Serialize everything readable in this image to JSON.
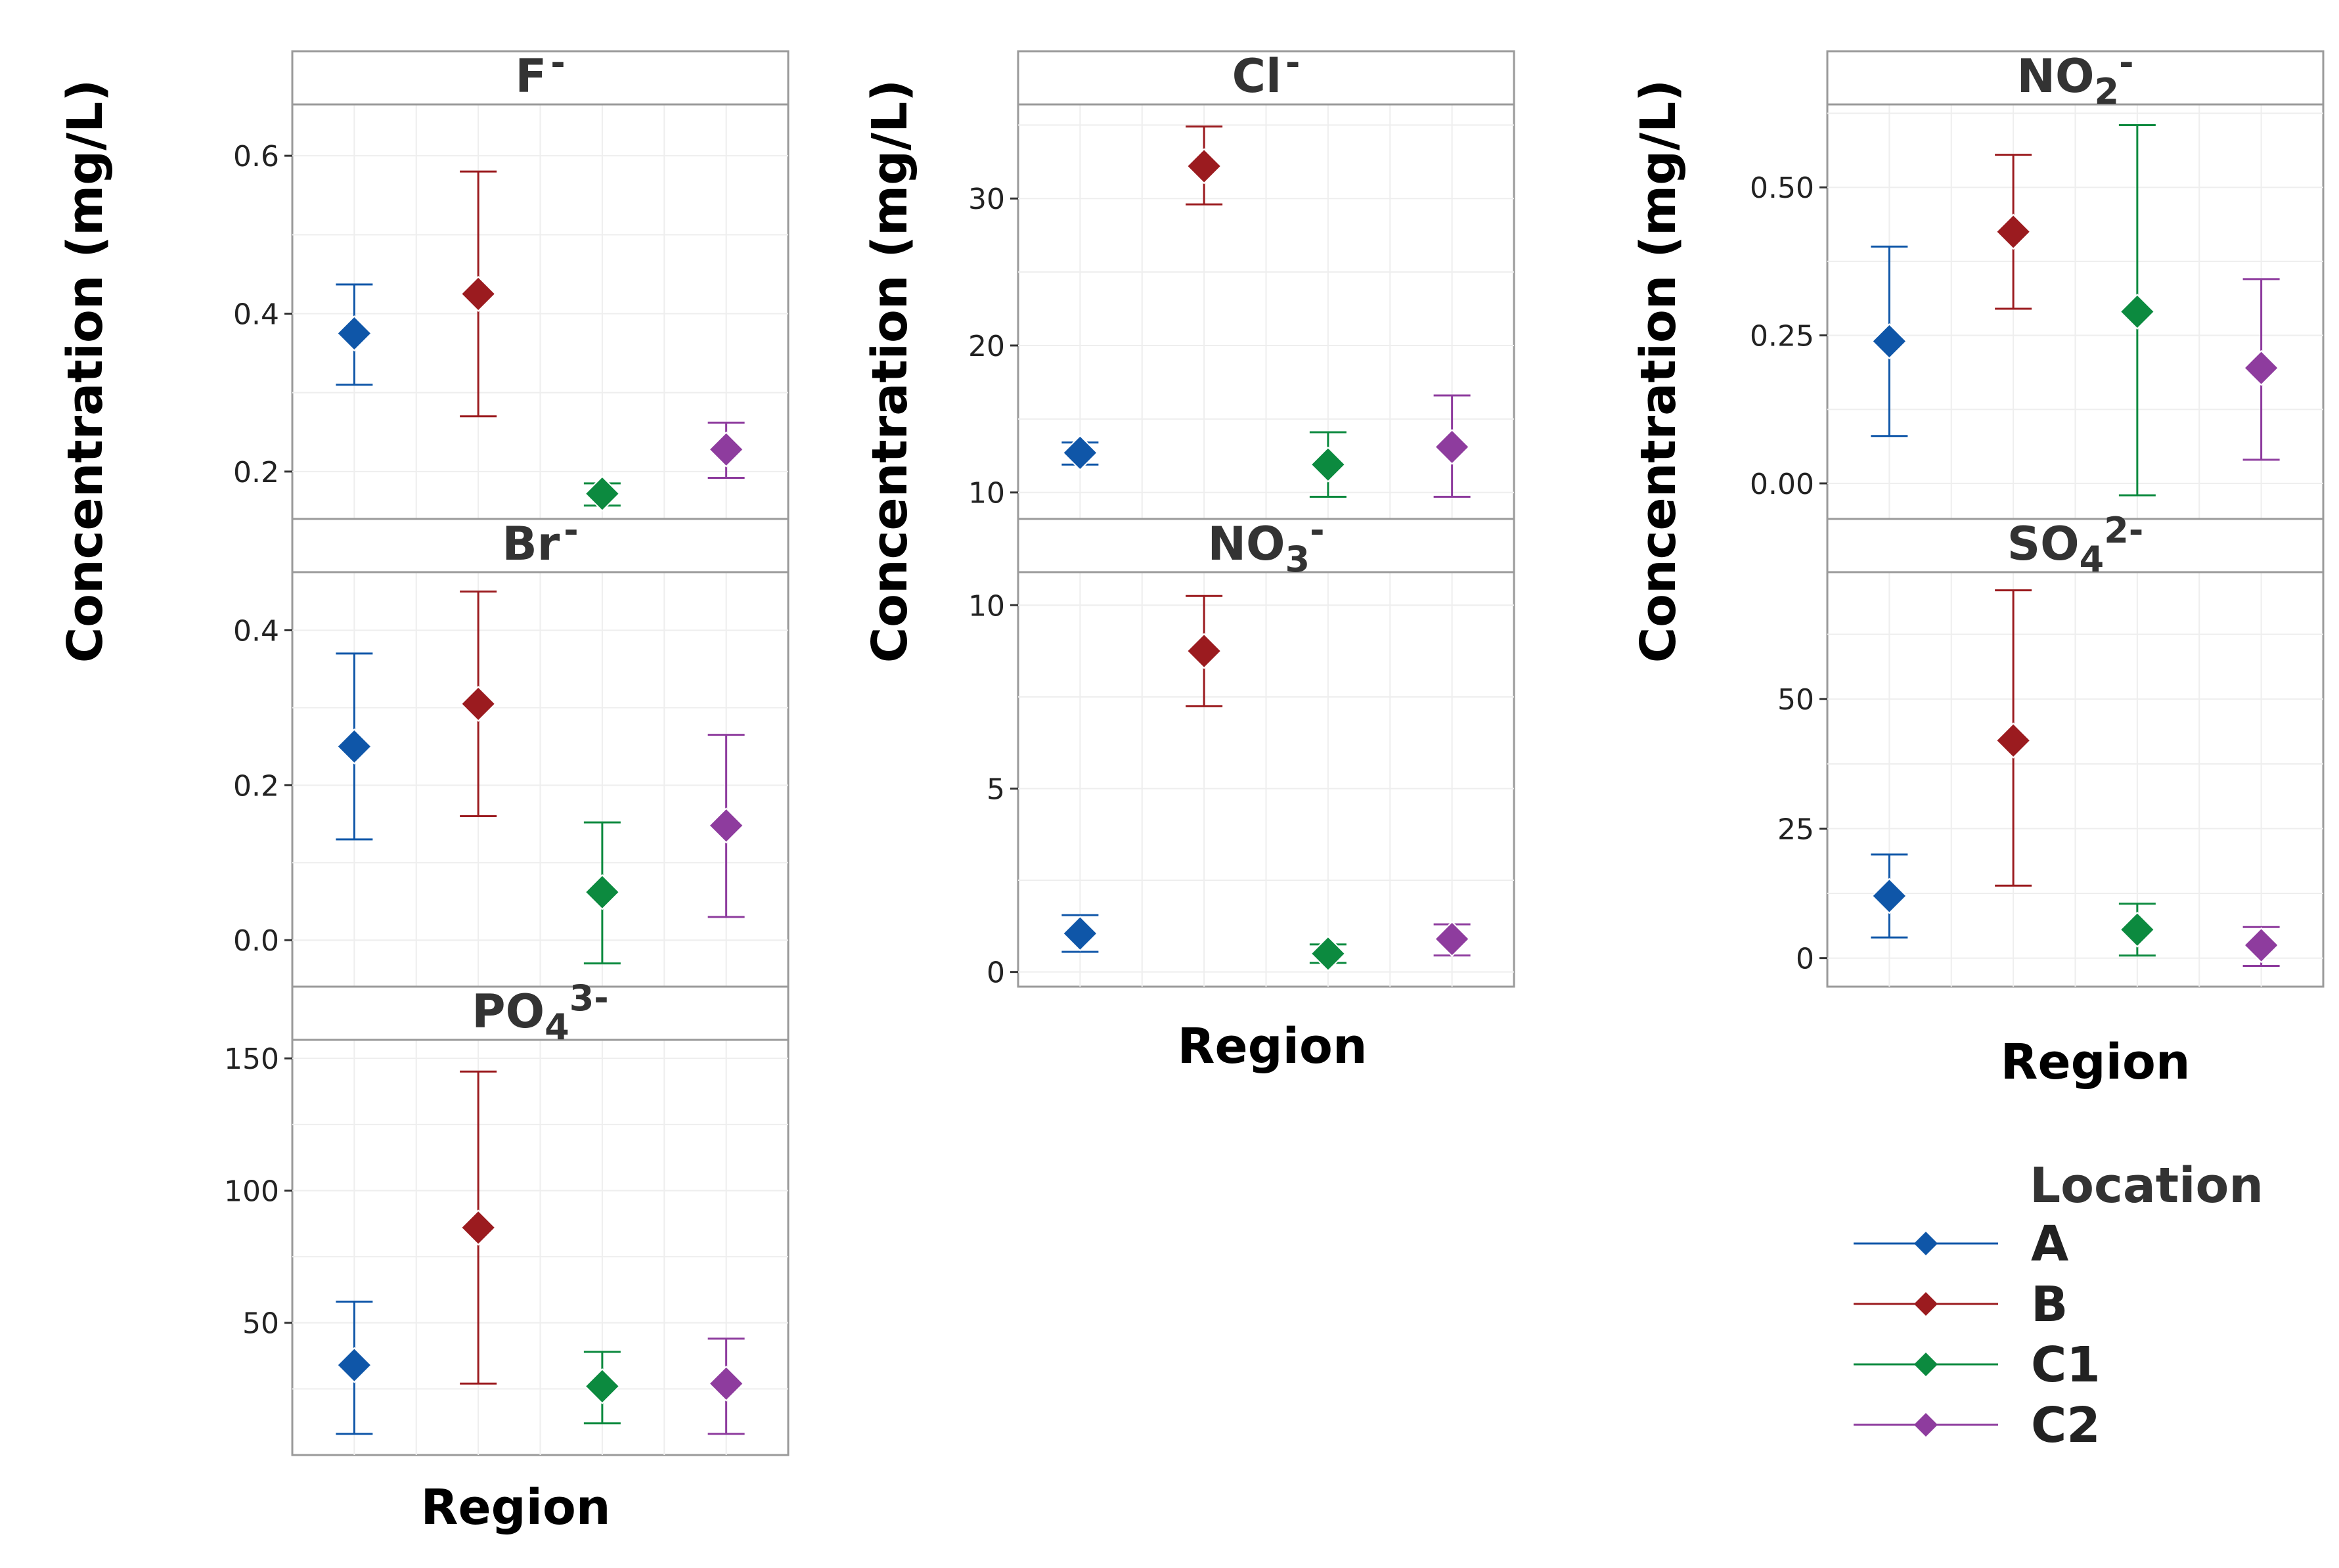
{
  "chart_data": {
    "type": "scatter",
    "subtype": "point-with-error-bars",
    "facet_layout": "three columns of stacked facet panels",
    "x_axis_title": "Region",
    "y_axis_title": "Concentration (mg/L)",
    "categories": [
      "A",
      "B",
      "C1",
      "C2"
    ],
    "colors": {
      "A": "#0f56a8",
      "B": "#9b1b1f",
      "C1": "#0c8a3f",
      "C2": "#8e3c9e"
    },
    "legend": {
      "title": "Location",
      "position": "bottom-right",
      "entries": [
        "A",
        "B",
        "C1",
        "C2"
      ]
    },
    "grid": true,
    "panels": [
      {
        "id": "F",
        "ion": "F",
        "charge": "-",
        "sub": "",
        "ylim": [
          0.14,
          0.665
        ],
        "yticks": [
          0.2,
          0.4,
          0.6
        ],
        "ytick_labels": [
          "0.2",
          "0.4",
          "0.6"
        ],
        "points": [
          {
            "location": "A",
            "mean": 0.375,
            "low": 0.31,
            "high": 0.437
          },
          {
            "location": "B",
            "mean": 0.425,
            "low": 0.27,
            "high": 0.58
          },
          {
            "location": "C1",
            "mean": 0.172,
            "low": 0.157,
            "high": 0.185
          },
          {
            "location": "C2",
            "mean": 0.228,
            "low": 0.192,
            "high": 0.262
          }
        ]
      },
      {
        "id": "Br",
        "ion": "Br",
        "charge": "-",
        "sub": "",
        "ylim": [
          -0.06,
          0.475
        ],
        "yticks": [
          0.0,
          0.2,
          0.4
        ],
        "ytick_labels": [
          "0.0",
          "0.2",
          "0.4"
        ],
        "points": [
          {
            "location": "A",
            "mean": 0.25,
            "low": 0.13,
            "high": 0.37
          },
          {
            "location": "B",
            "mean": 0.305,
            "low": 0.16,
            "high": 0.45
          },
          {
            "location": "C1",
            "mean": 0.062,
            "low": -0.03,
            "high": 0.152
          },
          {
            "location": "C2",
            "mean": 0.148,
            "low": 0.03,
            "high": 0.265
          }
        ]
      },
      {
        "id": "PO4",
        "ion": "PO",
        "charge": "3-",
        "sub": "4",
        "ylim": [
          0,
          157
        ],
        "yticks": [
          50,
          100,
          150
        ],
        "ytick_labels": [
          "50",
          "100",
          "150"
        ],
        "points": [
          {
            "location": "A",
            "mean": 34,
            "low": 8,
            "high": 58
          },
          {
            "location": "B",
            "mean": 86,
            "low": 27,
            "high": 145
          },
          {
            "location": "C1",
            "mean": 26,
            "low": 12,
            "high": 39
          },
          {
            "location": "C2",
            "mean": 27,
            "low": 8,
            "high": 44
          }
        ]
      },
      {
        "id": "Cl",
        "ion": "Cl",
        "charge": "-",
        "sub": "",
        "ylim": [
          8.2,
          36.4
        ],
        "yticks": [
          10,
          20,
          30
        ],
        "ytick_labels": [
          "10",
          "20",
          "30"
        ],
        "points": [
          {
            "location": "A",
            "mean": 12.7,
            "low": 11.9,
            "high": 13.4
          },
          {
            "location": "B",
            "mean": 32.2,
            "low": 29.6,
            "high": 34.9
          },
          {
            "location": "C1",
            "mean": 11.9,
            "low": 9.7,
            "high": 14.1
          },
          {
            "location": "C2",
            "mean": 13.1,
            "low": 9.7,
            "high": 16.6
          }
        ]
      },
      {
        "id": "NO3",
        "ion": "NO",
        "charge": "-",
        "sub": "3",
        "ylim": [
          -0.4,
          10.9
        ],
        "yticks": [
          0,
          5,
          10
        ],
        "ytick_labels": [
          "0",
          "5",
          "10"
        ],
        "points": [
          {
            "location": "A",
            "mean": 1.05,
            "low": 0.55,
            "high": 1.55
          },
          {
            "location": "B",
            "mean": 8.75,
            "low": 7.25,
            "high": 10.25
          },
          {
            "location": "C1",
            "mean": 0.5,
            "low": 0.25,
            "high": 0.75
          },
          {
            "location": "C2",
            "mean": 0.9,
            "low": 0.45,
            "high": 1.3
          }
        ]
      },
      {
        "id": "NO2",
        "ion": "NO",
        "charge": "-",
        "sub": "2",
        "ylim": [
          -0.06,
          0.64
        ],
        "yticks": [
          0.0,
          0.25,
          0.5
        ],
        "ytick_labels": [
          "0.00",
          "0.25",
          "0.50"
        ],
        "points": [
          {
            "location": "A",
            "mean": 0.24,
            "low": 0.08,
            "high": 0.4
          },
          {
            "location": "B",
            "mean": 0.425,
            "low": 0.295,
            "high": 0.555
          },
          {
            "location": "C1",
            "mean": 0.29,
            "low": -0.02,
            "high": 0.605
          },
          {
            "location": "C2",
            "mean": 0.195,
            "low": 0.04,
            "high": 0.345
          }
        ]
      },
      {
        "id": "SO4",
        "ion": "SO",
        "charge": "2-",
        "sub": "4",
        "ylim": [
          -5.5,
          74.5
        ],
        "yticks": [
          0,
          25,
          50
        ],
        "ytick_labels": [
          "0",
          "25",
          "50"
        ],
        "points": [
          {
            "location": "A",
            "mean": 12,
            "low": 4,
            "high": 20
          },
          {
            "location": "B",
            "mean": 42,
            "low": 14,
            "high": 71
          },
          {
            "location": "C1",
            "mean": 5.5,
            "low": 0.5,
            "high": 10.5
          },
          {
            "location": "C2",
            "mean": 2.5,
            "low": -1.5,
            "high": 6
          }
        ]
      }
    ]
  }
}
